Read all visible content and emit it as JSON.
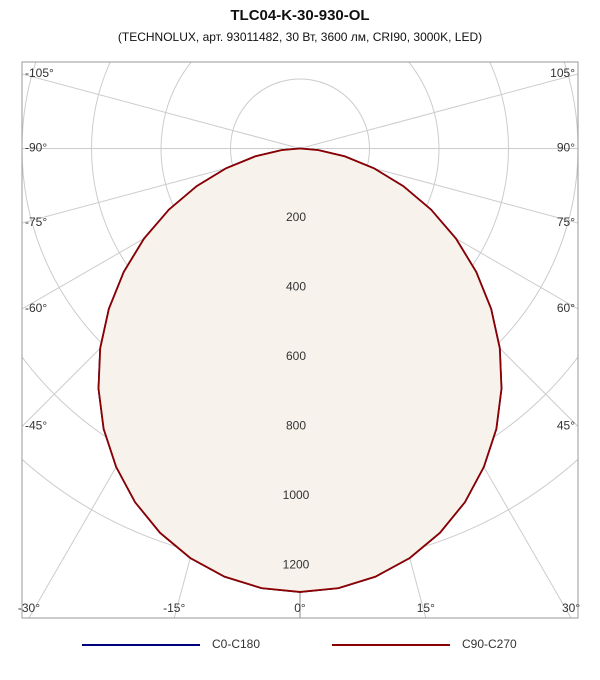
{
  "chart_data": {
    "type": "polar",
    "title": "TLC04-K-30-930-OL",
    "subtitle": "(TECHNOLUX, арт. 93011482, 30 Вт, 3600 лм, CRI90, 3000K, LED)",
    "angles": [
      -90,
      -85,
      -80,
      -75,
      -70,
      -65,
      -60,
      -55,
      -50,
      -45,
      -40,
      -35,
      -30,
      -25,
      -20,
      -15,
      -10,
      -5,
      0,
      5,
      10,
      15,
      20,
      25,
      30,
      35,
      40,
      45,
      50,
      55,
      60,
      65,
      70,
      75,
      80,
      85,
      90
    ],
    "series": [
      {
        "name": "C0-C180",
        "color": "#000080",
        "values": [
          0,
          53,
          131,
          220,
          316,
          416,
          518,
          619,
          718,
          813,
          902,
          985,
          1058,
          1123,
          1177,
          1220,
          1251,
          1270,
          1276,
          1270,
          1251,
          1220,
          1177,
          1123,
          1058,
          985,
          902,
          813,
          718,
          619,
          518,
          416,
          316,
          220,
          131,
          53,
          0
        ]
      },
      {
        "name": "C90-C270",
        "color": "#8b0000",
        "values": [
          0,
          53,
          131,
          220,
          316,
          416,
          518,
          619,
          718,
          813,
          902,
          985,
          1058,
          1123,
          1177,
          1220,
          1251,
          1270,
          1276,
          1270,
          1251,
          1220,
          1177,
          1123,
          1058,
          985,
          902,
          813,
          718,
          619,
          518,
          416,
          316,
          220,
          131,
          53,
          0
        ]
      }
    ],
    "rticks": [
      200,
      400,
      600,
      800,
      1000,
      1200
    ],
    "angleticks": [
      {
        "value": -105,
        "label": "-105°"
      },
      {
        "value": -90,
        "label": "-90°"
      },
      {
        "value": -75,
        "label": "-75°"
      },
      {
        "value": -60,
        "label": "-60°"
      },
      {
        "value": -45,
        "label": "-45°"
      },
      {
        "value": -30,
        "label": "-30°"
      },
      {
        "value": -15,
        "label": "-15°"
      },
      {
        "value": 0,
        "label": "0°"
      },
      {
        "value": 15,
        "label": "15°"
      },
      {
        "value": 30,
        "label": "30°"
      },
      {
        "value": 45,
        "label": "45°"
      },
      {
        "value": 60,
        "label": "60°"
      },
      {
        "value": 75,
        "label": "75°"
      },
      {
        "value": 90,
        "label": "90°"
      },
      {
        "value": 105,
        "label": "105°"
      }
    ],
    "fill": "#f7f3ec",
    "grid": true
  }
}
